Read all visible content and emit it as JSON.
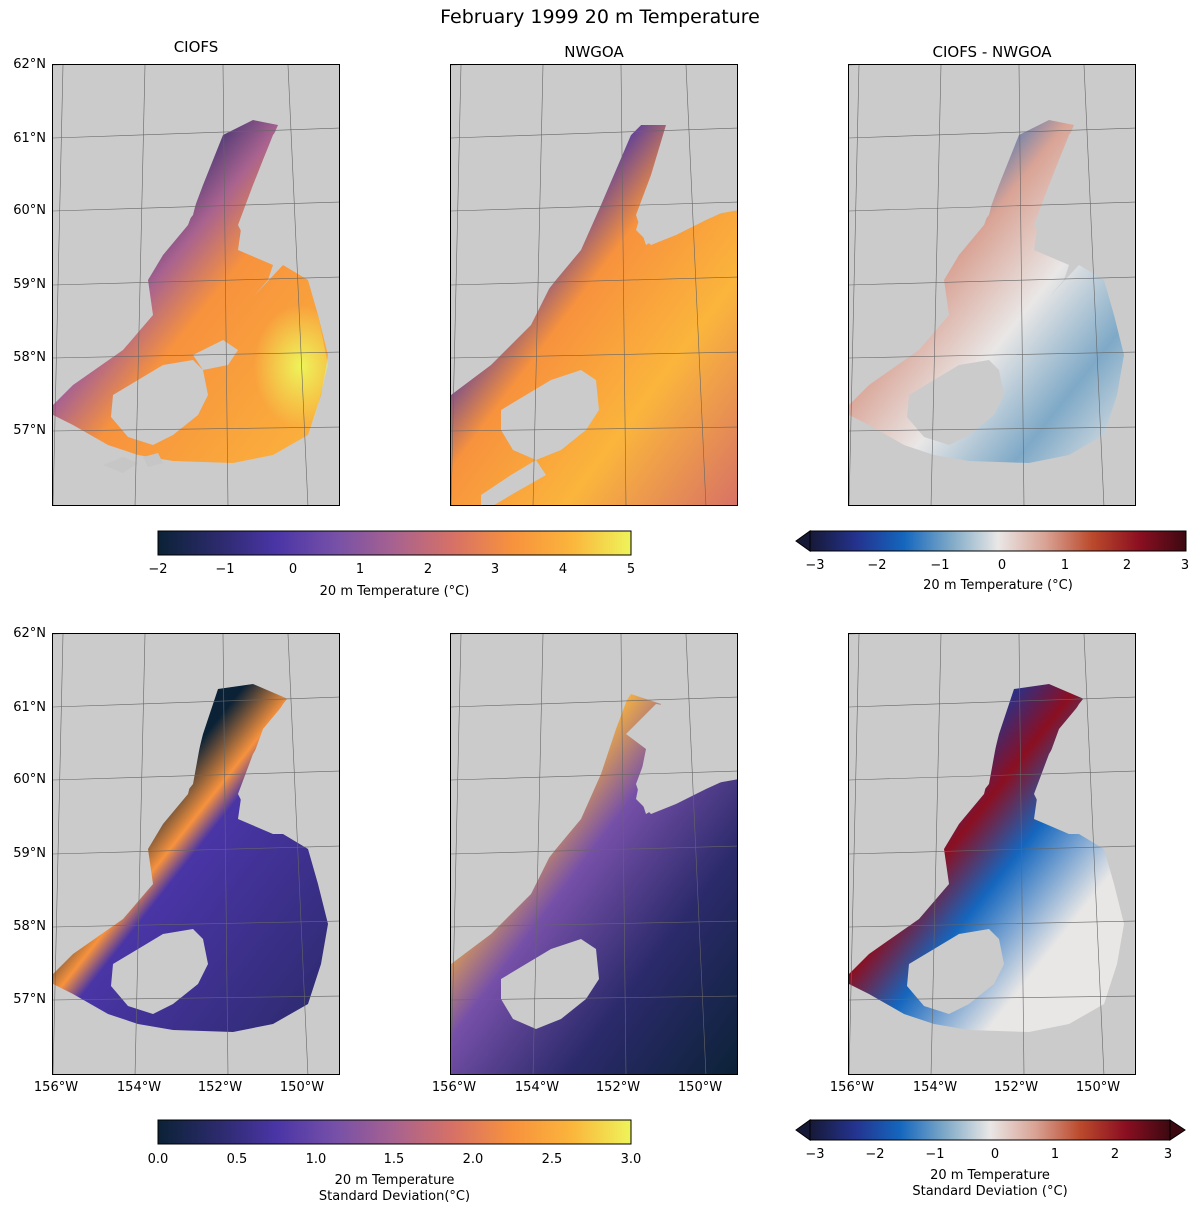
{
  "figure": {
    "title": "February 1999 20 m Temperature"
  },
  "columns": [
    "CIOFS",
    "NWGOA",
    "CIOFS - NWGOA"
  ],
  "axes": {
    "lat_labels": [
      "62°N",
      "61°N",
      "60°N",
      "59°N",
      "58°N",
      "57°N"
    ],
    "lon_labels": [
      "156°W",
      "154°W",
      "152°W",
      "150°W"
    ]
  },
  "colorbars": {
    "temp": {
      "label": "20 m Temperature (°C)",
      "ticks": [
        "−2",
        "−1",
        "0",
        "1",
        "2",
        "3",
        "4",
        "5"
      ],
      "range": [
        -2,
        5
      ],
      "colors": [
        "#0b2236",
        "#2b2a6b",
        "#4a35a6",
        "#7650a8",
        "#a8628f",
        "#d77166",
        "#f7923d",
        "#fbb53c",
        "#eef45a"
      ]
    },
    "temp_diff": {
      "label": "20 m Temperature (°C)",
      "ticks": [
        "−3",
        "−2",
        "−1",
        "0",
        "1",
        "2",
        "3"
      ],
      "range": [
        -3,
        3
      ],
      "colors": [
        "#161936",
        "#24338e",
        "#1466be",
        "#7ea9c7",
        "#e9e7e6",
        "#d9a395",
        "#bb4a2c",
        "#8b0f21",
        "#3c0911"
      ]
    },
    "std": {
      "label_line1": "20 m Temperature",
      "label_line2": "Standard Deviation(°C)",
      "ticks": [
        "0.0",
        "0.5",
        "1.0",
        "1.5",
        "2.0",
        "2.5",
        "3.0"
      ],
      "range": [
        0,
        3
      ],
      "colors": [
        "#0b2236",
        "#2b2a6b",
        "#4a35a6",
        "#7650a8",
        "#a8628f",
        "#d77166",
        "#f7923d",
        "#fbb53c",
        "#eef45a"
      ]
    },
    "std_diff": {
      "label_line1": "20 m Temperature",
      "label_line2": "Standard Deviation (°C)",
      "ticks": [
        "−3",
        "−2",
        "−1",
        "0",
        "1",
        "2",
        "3"
      ],
      "range": [
        -3,
        3
      ],
      "colors": [
        "#161936",
        "#24338e",
        "#1466be",
        "#7ea9c7",
        "#e9e7e6",
        "#d9a395",
        "#bb4a2c",
        "#8b0f21",
        "#3c0911"
      ]
    }
  },
  "map_style": {
    "land": "#cbcbcb",
    "gridline": "#666666"
  }
}
